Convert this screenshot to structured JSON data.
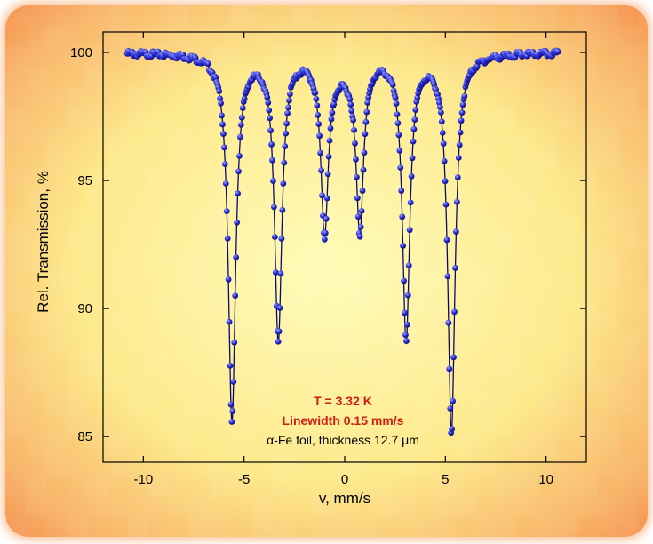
{
  "chart_data": {
    "type": "scatter",
    "title": "",
    "xlabel": "v, mm/s",
    "ylabel": "Rel. Transmission, %",
    "xlim": [
      -12,
      12
    ],
    "ylim": [
      84,
      100.8
    ],
    "x_ticks": [
      -10,
      -5,
      0,
      5,
      10
    ],
    "y_ticks": [
      85,
      90,
      95,
      100
    ],
    "grid": false,
    "legend": "none",
    "colors": {
      "points": "#2b2fd6",
      "point_highlight": "#9ea6ff",
      "fit_line": "#0a0a6a",
      "annotation_red": "#d11a10",
      "background_center": "#fffcb8",
      "background_edge": "#f58d4c"
    },
    "series": [
      {
        "marker": "circle",
        "line": "fit",
        "sampled_x_range": [
          -10.8,
          10.6
        ],
        "baseline": 100.0,
        "peaks": [
          {
            "position": -5.6,
            "min_value": 85.7
          },
          {
            "position": -3.3,
            "min_value": 88.9
          },
          {
            "position": -1.0,
            "min_value": 93.3
          },
          {
            "position": 0.75,
            "min_value": 93.4
          },
          {
            "position": 3.05,
            "min_value": 88.9
          },
          {
            "position": 5.3,
            "min_value": 85.3
          }
        ]
      }
    ],
    "annotations": [
      {
        "text": "T = 3.32 K",
        "style": "red-bold"
      },
      {
        "text": "Linewidth 0.15 mm/s",
        "style": "red-bold"
      },
      {
        "text": "α-Fe foil, thickness 12.7 μm",
        "style": "plain"
      }
    ]
  }
}
